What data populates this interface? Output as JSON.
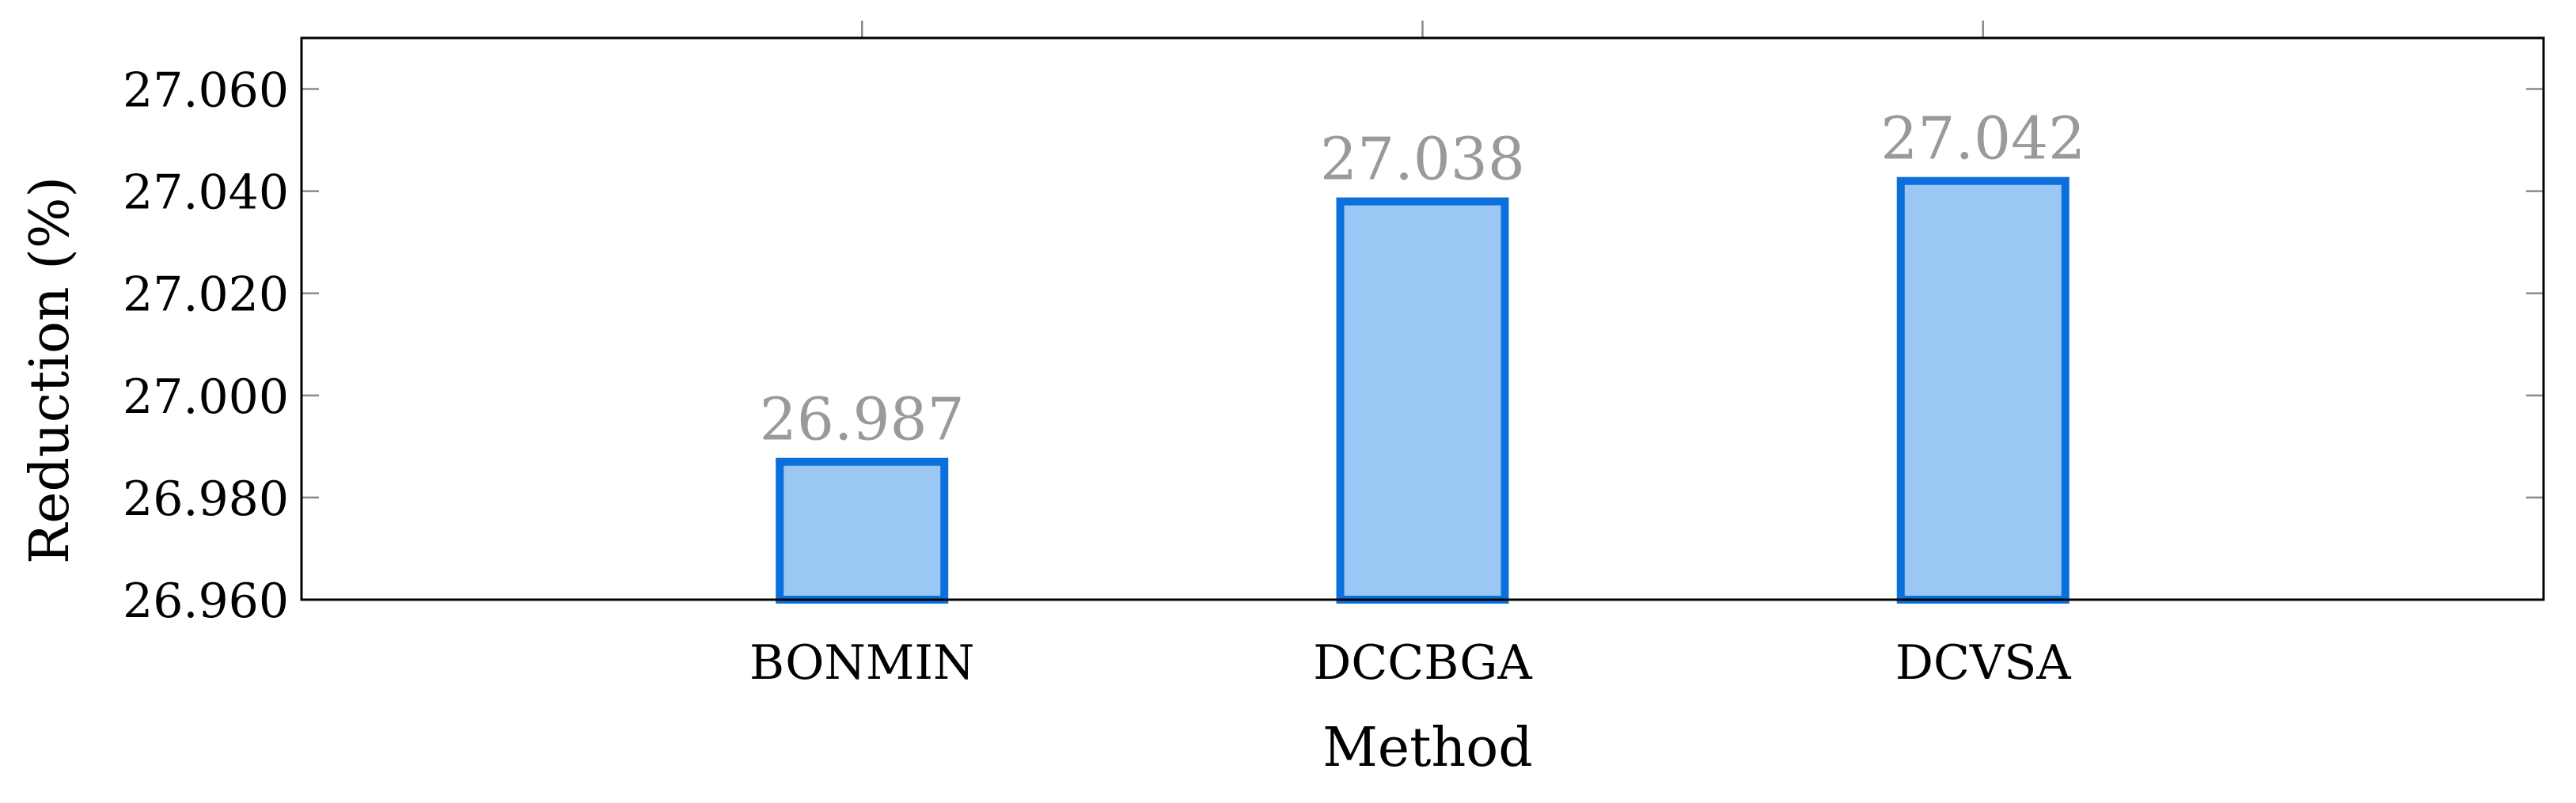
{
  "chart_data": {
    "type": "bar",
    "title": "",
    "xlabel": "Method",
    "ylabel": "Reduction (%)",
    "categories": [
      "BONMIN",
      "DCCBGA",
      "DCVSA"
    ],
    "values": [
      26.987,
      27.038,
      27.042
    ],
    "value_labels": [
      "26.987",
      "27.038",
      "27.042"
    ],
    "yticks": [
      26.96,
      26.98,
      27.0,
      27.02,
      27.04,
      27.06
    ],
    "ytick_labels": [
      "26.960",
      "26.980",
      "27.000",
      "27.020",
      "27.040",
      "27.060"
    ],
    "ylim": [
      26.96,
      27.07
    ],
    "grid": false,
    "legend": "none",
    "colors": {
      "bar_fill": "#9ac7f3",
      "bar_stroke": "#0b6fdc",
      "value_label": "#9a9a9a",
      "axis": "#000000",
      "text": "#000000"
    }
  }
}
